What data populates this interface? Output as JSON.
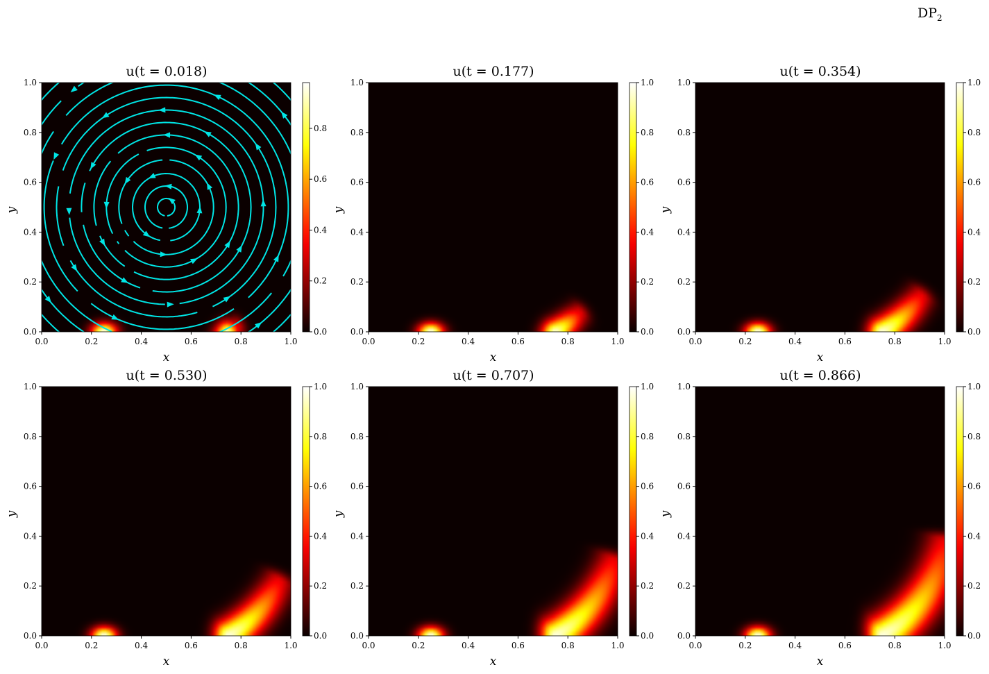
{
  "figure_title": {
    "main": "DP",
    "sub": "2"
  },
  "chart_data": [
    {
      "type": "heatmap",
      "title": "u(t = 0.018)",
      "t": 0.018,
      "xlabel": "x",
      "ylabel": "y",
      "xlim": [
        0,
        1
      ],
      "ylim": [
        0,
        1
      ],
      "xticks": [
        "0.0",
        "0.2",
        "0.4",
        "0.6",
        "0.8",
        "1.0"
      ],
      "yticks": [
        "0.0",
        "0.2",
        "0.4",
        "0.6",
        "0.8",
        "1.0"
      ],
      "colorbar": {
        "colormap": "hot",
        "range": [
          0,
          0.98
        ],
        "ticks": [
          "0.0",
          "0.2",
          "0.4",
          "0.6",
          "0.8"
        ]
      },
      "overlay": "streamlines",
      "overlay_color": "#00e5e5"
    },
    {
      "type": "heatmap",
      "title": "u(t = 0.177)",
      "t": 0.177,
      "xlabel": "x",
      "ylabel": "y",
      "xlim": [
        0,
        1
      ],
      "ylim": [
        0,
        1
      ],
      "xticks": [
        "0.0",
        "0.2",
        "0.4",
        "0.6",
        "0.8",
        "1.0"
      ],
      "yticks": [
        "0.0",
        "0.2",
        "0.4",
        "0.6",
        "0.8",
        "1.0"
      ],
      "colorbar": {
        "colormap": "hot",
        "range": [
          0,
          1
        ],
        "ticks": [
          "0.0",
          "0.2",
          "0.4",
          "0.6",
          "0.8",
          "1.0"
        ]
      }
    },
    {
      "type": "heatmap",
      "title": "u(t = 0.354)",
      "t": 0.354,
      "xlabel": "x",
      "ylabel": "y",
      "xlim": [
        0,
        1
      ],
      "ylim": [
        0,
        1
      ],
      "xticks": [
        "0.0",
        "0.2",
        "0.4",
        "0.6",
        "0.8",
        "1.0"
      ],
      "yticks": [
        "0.0",
        "0.2",
        "0.4",
        "0.6",
        "0.8",
        "1.0"
      ],
      "colorbar": {
        "colormap": "hot",
        "range": [
          0,
          1
        ],
        "ticks": [
          "0.0",
          "0.2",
          "0.4",
          "0.6",
          "0.8",
          "1.0"
        ]
      }
    },
    {
      "type": "heatmap",
      "title": "u(t = 0.530)",
      "t": 0.53,
      "xlabel": "x",
      "ylabel": "y",
      "xlim": [
        0,
        1
      ],
      "ylim": [
        0,
        1
      ],
      "xticks": [
        "0.0",
        "0.2",
        "0.4",
        "0.6",
        "0.8",
        "1.0"
      ],
      "yticks": [
        "0.0",
        "0.2",
        "0.4",
        "0.6",
        "0.8",
        "1.0"
      ],
      "colorbar": {
        "colormap": "hot",
        "range": [
          0,
          1
        ],
        "ticks": [
          "0.0",
          "0.2",
          "0.4",
          "0.6",
          "0.8",
          "1.0"
        ]
      }
    },
    {
      "type": "heatmap",
      "title": "u(t = 0.707)",
      "t": 0.707,
      "xlabel": "x",
      "ylabel": "y",
      "xlim": [
        0,
        1
      ],
      "ylim": [
        0,
        1
      ],
      "xticks": [
        "0.0",
        "0.2",
        "0.4",
        "0.6",
        "0.8",
        "1.0"
      ],
      "yticks": [
        "0.0",
        "0.2",
        "0.4",
        "0.6",
        "0.8",
        "1.0"
      ],
      "colorbar": {
        "colormap": "hot",
        "range": [
          0,
          1
        ],
        "ticks": [
          "0.0",
          "0.2",
          "0.4",
          "0.6",
          "0.8",
          "1.0"
        ]
      }
    },
    {
      "type": "heatmap",
      "title": "u(t = 0.866)",
      "t": 0.866,
      "xlabel": "x",
      "ylabel": "y",
      "xlim": [
        0,
        1
      ],
      "ylim": [
        0,
        1
      ],
      "xticks": [
        "0.0",
        "0.2",
        "0.4",
        "0.6",
        "0.8",
        "1.0"
      ],
      "yticks": [
        "0.0",
        "0.2",
        "0.4",
        "0.6",
        "0.8",
        "1.0"
      ],
      "colorbar": {
        "colormap": "hot",
        "range": [
          0,
          1
        ],
        "ticks": [
          "0.0",
          "0.2",
          "0.4",
          "0.6",
          "0.8",
          "1.0"
        ]
      }
    }
  ]
}
